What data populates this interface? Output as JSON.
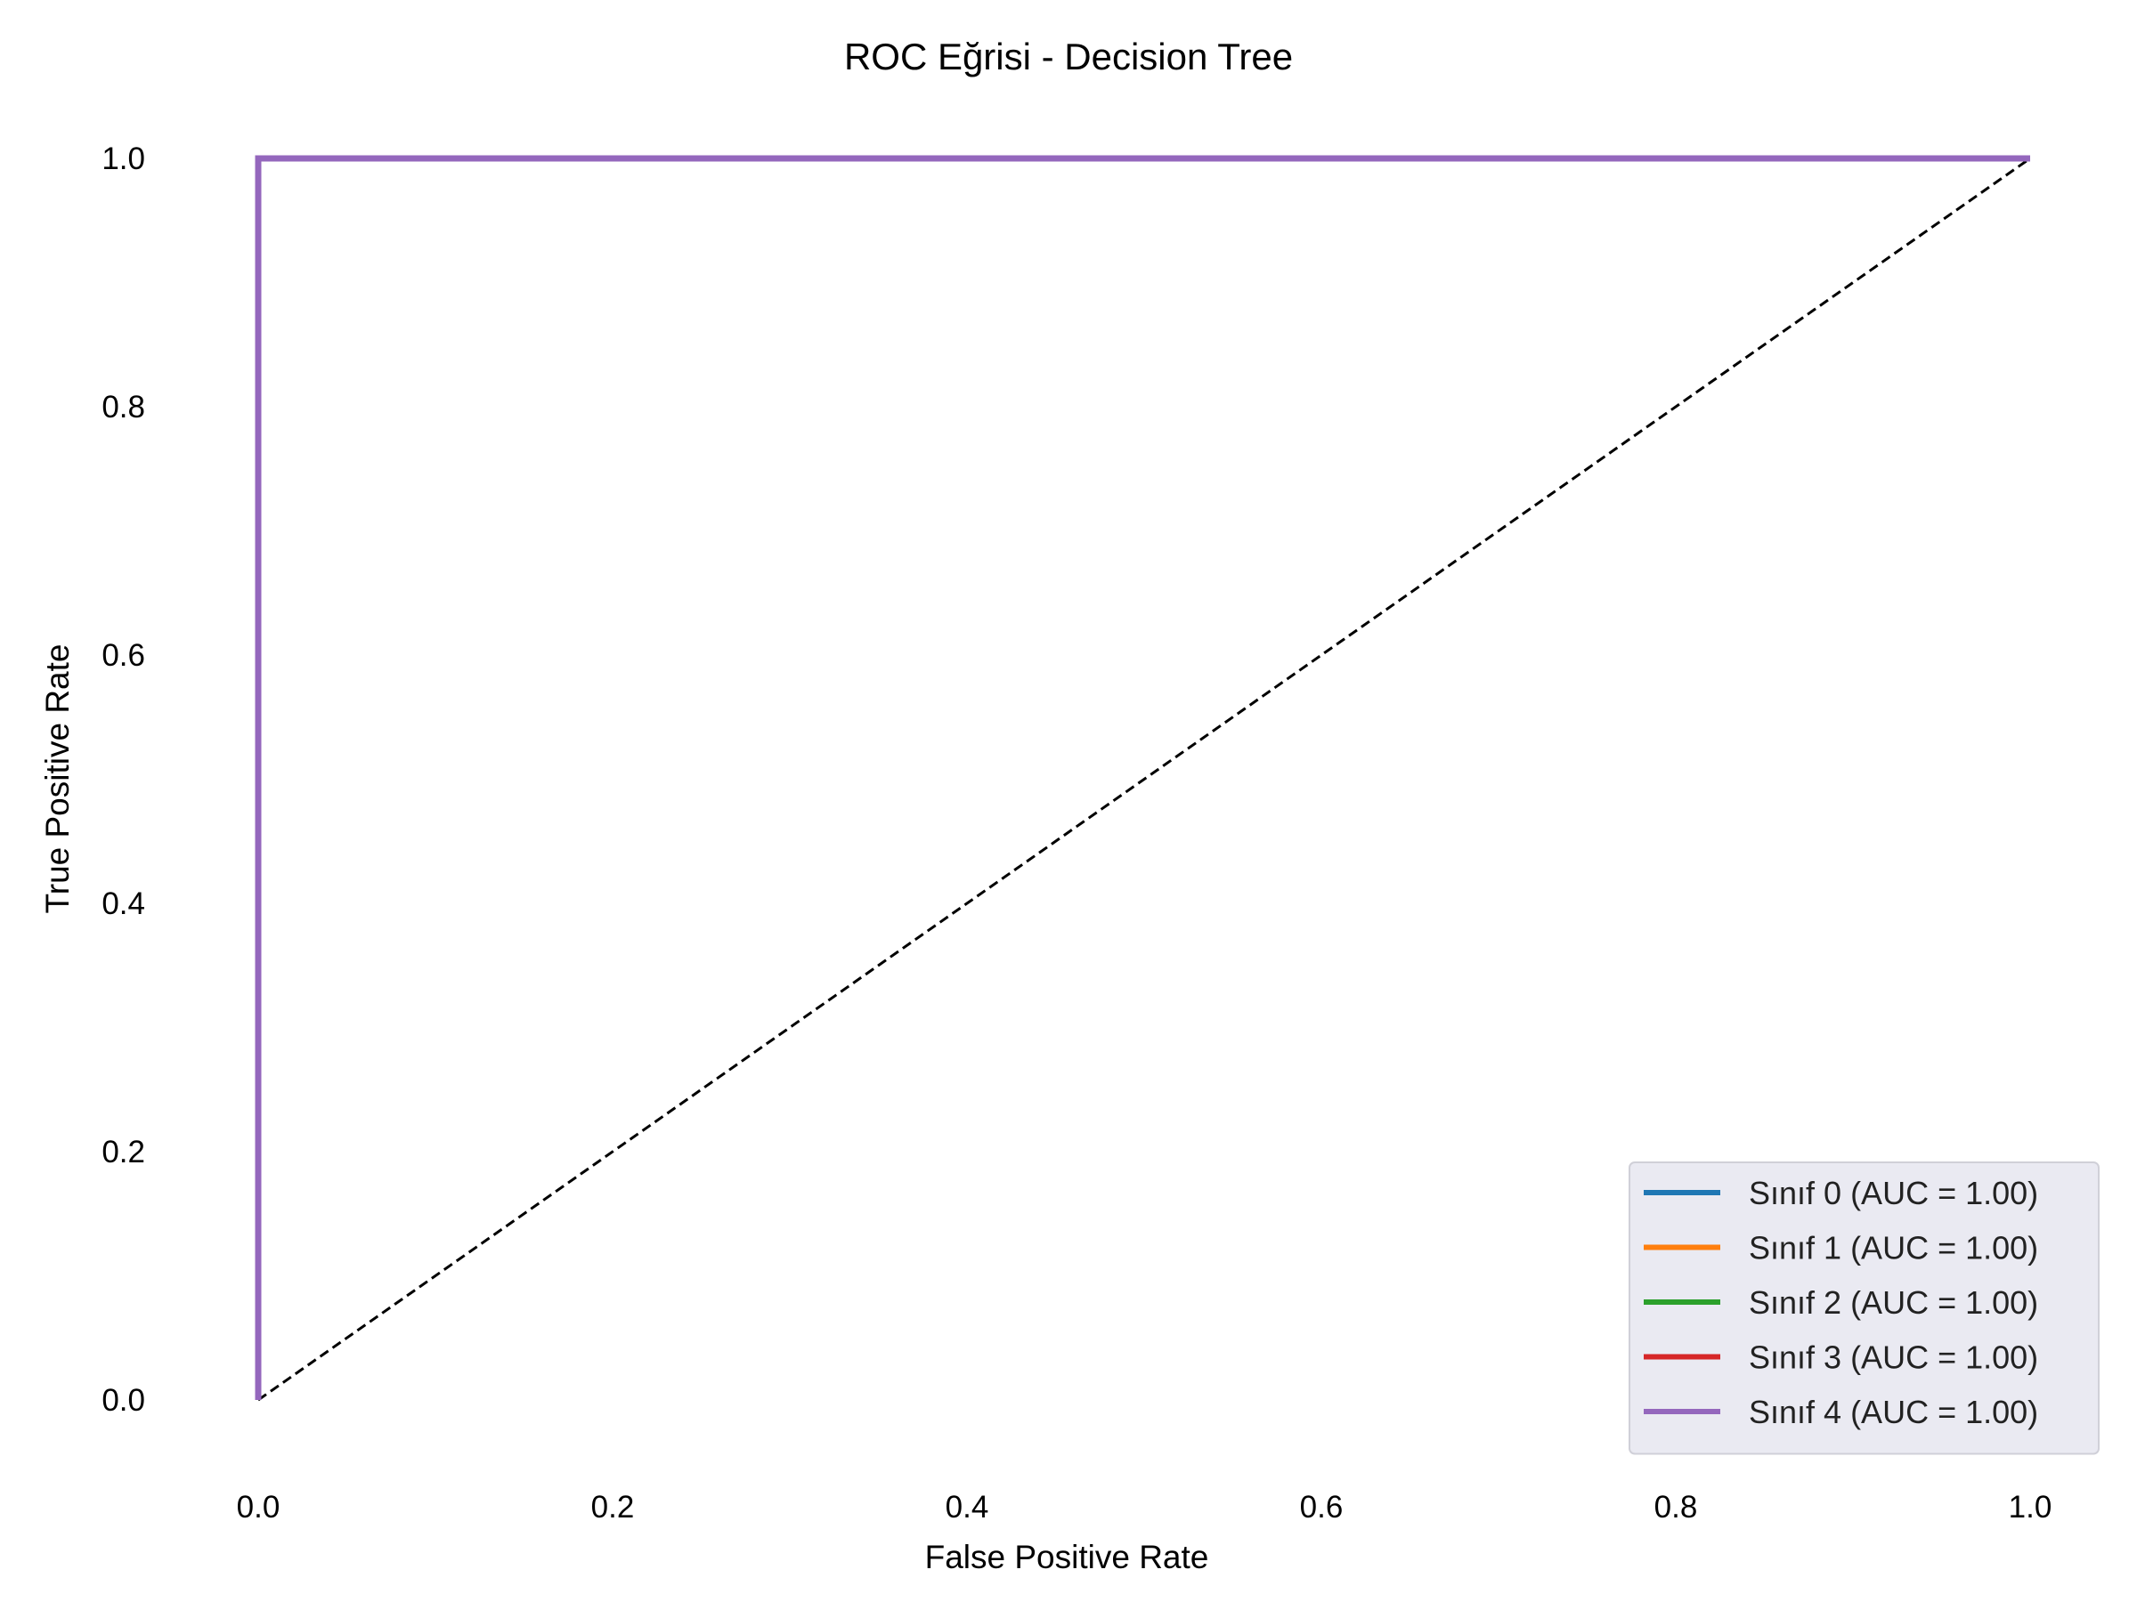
{
  "chart_data": {
    "type": "line",
    "title": "ROC Eğrisi - Decision Tree",
    "xlabel": "False Positive Rate",
    "ylabel": "True Positive Rate",
    "xlim": [
      -0.05,
      1.05
    ],
    "ylim": [
      -0.05,
      1.05
    ],
    "xticks": [
      0.0,
      0.2,
      0.4,
      0.6,
      0.8,
      1.0
    ],
    "yticks": [
      0.0,
      0.2,
      0.4,
      0.6,
      0.8,
      1.0
    ],
    "xtick_labels": [
      "0.0",
      "0.2",
      "0.4",
      "0.6",
      "0.8",
      "1.0"
    ],
    "ytick_labels": [
      "0.0",
      "0.2",
      "0.4",
      "0.6",
      "0.8",
      "1.0"
    ],
    "grid": false,
    "legend_position": "bottom-right",
    "series": [
      {
        "name": "Sınıf 0 (AUC = 1.00)",
        "color": "#1f77b4",
        "x": [
          0.0,
          0.0,
          1.0
        ],
        "y": [
          0.0,
          1.0,
          1.0
        ]
      },
      {
        "name": "Sınıf 1 (AUC = 1.00)",
        "color": "#ff7f0e",
        "x": [
          0.0,
          0.0,
          1.0
        ],
        "y": [
          0.0,
          1.0,
          1.0
        ]
      },
      {
        "name": "Sınıf 2 (AUC = 1.00)",
        "color": "#2ca02c",
        "x": [
          0.0,
          0.0,
          1.0
        ],
        "y": [
          0.0,
          1.0,
          1.0
        ]
      },
      {
        "name": "Sınıf 3 (AUC = 1.00)",
        "color": "#d62728",
        "x": [
          0.0,
          0.0,
          1.0
        ],
        "y": [
          0.0,
          1.0,
          1.0
        ]
      },
      {
        "name": "Sınıf 4 (AUC = 1.00)",
        "color": "#9467bd",
        "x": [
          0.0,
          0.0,
          1.0
        ],
        "y": [
          0.0,
          1.0,
          1.0
        ]
      }
    ],
    "reference_line": {
      "x": [
        0.0,
        1.0
      ],
      "y": [
        0.0,
        1.0
      ],
      "color": "#000000",
      "style": "dashed"
    },
    "legend_background": "#eaeaf2"
  }
}
